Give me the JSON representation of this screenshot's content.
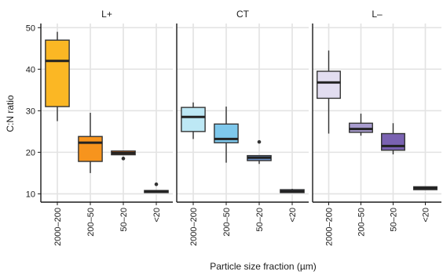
{
  "chart_data": {
    "type": "boxplot",
    "xlabel": "Particle size fraction (µm)",
    "ylabel": "C:N ratio",
    "ylim": [
      8,
      51
    ],
    "yticks": [
      10,
      20,
      30,
      40,
      50
    ],
    "categories": [
      "2000–200",
      "200–50",
      "50–20",
      "<20"
    ],
    "grid": true,
    "panels": [
      {
        "name": "L+",
        "boxes": [
          {
            "category": "2000–200",
            "min": 27.5,
            "q1": 31,
            "median": 42,
            "q3": 47,
            "max": 49,
            "outliers": [],
            "color": "#FBB724"
          },
          {
            "category": "200–50",
            "min": 15,
            "q1": 17.8,
            "median": 22.3,
            "q3": 23.8,
            "max": 29.5,
            "outliers": [],
            "color": "#F7941D"
          },
          {
            "category": "50–20",
            "min": 19.4,
            "q1": 19.4,
            "median": 19.8,
            "q3": 20.3,
            "max": 20.3,
            "outliers": [
              18.5
            ],
            "color": "#E0660F"
          },
          {
            "category": "<20",
            "min": 10.3,
            "q1": 10.3,
            "median": 10.6,
            "q3": 10.8,
            "max": 10.8,
            "outliers": [
              12.3
            ],
            "color": "#C24A0A"
          }
        ]
      },
      {
        "name": "CT",
        "boxes": [
          {
            "category": "2000–200",
            "min": 23.2,
            "q1": 25,
            "median": 28.5,
            "q3": 30.8,
            "max": 32,
            "outliers": [],
            "color": "#BDE8F5"
          },
          {
            "category": "200–50",
            "min": 17.5,
            "q1": 22.3,
            "median": 23.2,
            "q3": 26.8,
            "max": 31,
            "outliers": [],
            "color": "#7EC8EC"
          },
          {
            "category": "50–20",
            "min": 17.2,
            "q1": 18,
            "median": 18.7,
            "q3": 19.2,
            "max": 19.2,
            "outliers": [
              22.5
            ],
            "color": "#6C90C8"
          },
          {
            "category": "<20",
            "min": 10.3,
            "q1": 10.3,
            "median": 10.6,
            "q3": 11,
            "max": 11.2,
            "outliers": [],
            "color": "#2F4B86"
          }
        ]
      },
      {
        "name": "L–",
        "boxes": [
          {
            "category": "2000–200",
            "min": 24.5,
            "q1": 33,
            "median": 36.8,
            "q3": 39.5,
            "max": 44.5,
            "outliers": [],
            "color": "#E2DDF0"
          },
          {
            "category": "200–50",
            "min": 24,
            "q1": 24.8,
            "median": 25.6,
            "q3": 27,
            "max": 29.3,
            "outliers": [],
            "color": "#A89CCE"
          },
          {
            "category": "50–20",
            "min": 19.5,
            "q1": 20.5,
            "median": 21.5,
            "q3": 24.5,
            "max": 27,
            "outliers": [],
            "color": "#7A62B2"
          },
          {
            "category": "<20",
            "min": 11,
            "q1": 11,
            "median": 11.4,
            "q3": 11.7,
            "max": 11.7,
            "outliers": [],
            "color": "#4E2E8C"
          }
        ]
      }
    ]
  }
}
